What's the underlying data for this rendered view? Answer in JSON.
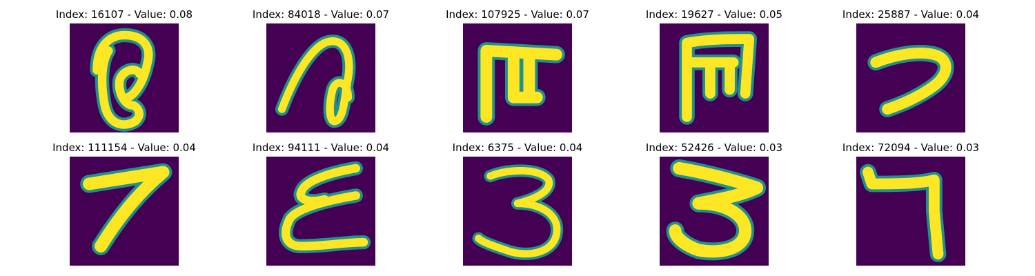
{
  "figure": {
    "colors": {
      "background": "#440154",
      "mid": "#21918c",
      "foreground": "#fde725"
    },
    "panels": [
      {
        "title": "Index: 16107 - Value: 0.08",
        "glyph_icon": "handwritten-a-like-icon"
      },
      {
        "title": "Index: 84018 - Value: 0.07",
        "glyph_icon": "handwritten-n-loop-icon"
      },
      {
        "title": "Index: 107925 - Value: 0.07",
        "glyph_icon": "handwritten-t-like-icon"
      },
      {
        "title": "Index: 19627 - Value: 0.05",
        "glyph_icon": "handwritten-m-like-icon"
      },
      {
        "title": "Index: 25887 - Value: 0.04",
        "glyph_icon": "handwritten-seven-hook-icon"
      },
      {
        "title": "Index: 111154 - Value: 0.04",
        "glyph_icon": "handwritten-seven-icon"
      },
      {
        "title": "Index: 94111 - Value: 0.04",
        "glyph_icon": "handwritten-e-like-icon"
      },
      {
        "title": "Index: 6375 - Value: 0.04",
        "glyph_icon": "handwritten-three-icon"
      },
      {
        "title": "Index: 52426 - Value: 0.03",
        "glyph_icon": "handwritten-three-bold-icon"
      },
      {
        "title": "Index: 72094 - Value: 0.03",
        "glyph_icon": "handwritten-seven-bar-icon"
      }
    ]
  }
}
